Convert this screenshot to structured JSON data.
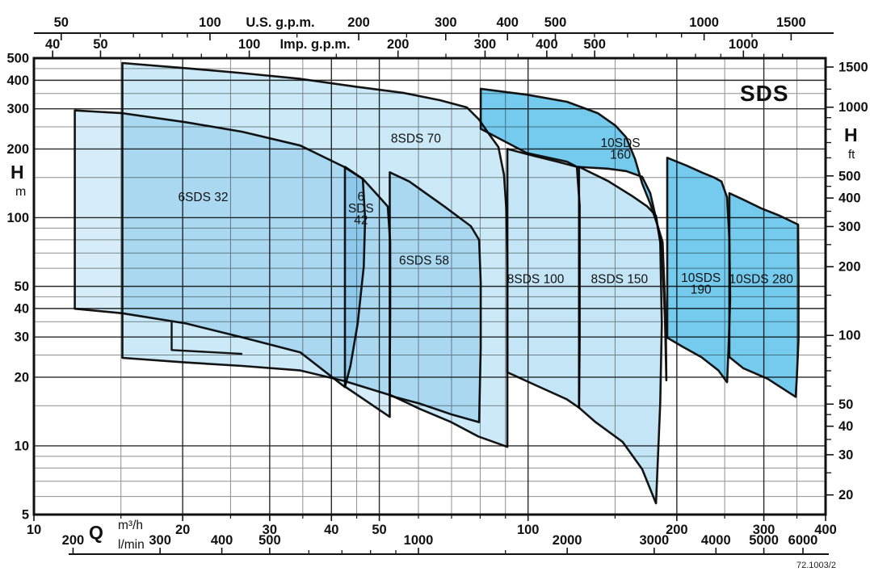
{
  "title": "SDS",
  "doc_code": "72.1003/2",
  "axis_labels": {
    "us": "U.S. g.p.m.",
    "imp": "Imp. g.p.m.",
    "head": "H",
    "head_unit_left": "m",
    "head_unit_right": "ft",
    "flow": "Q",
    "flow_unit_1": "m³/h",
    "flow_unit_2": "l/min"
  },
  "chart_data": {
    "type": "area",
    "description": "Pump operating-range envelopes, flow Q vs head H, log-log scales",
    "x_unit": "m3/h",
    "y_unit": "m",
    "xlim": [
      10,
      400
    ],
    "ylim": [
      5,
      500
    ],
    "log_log": true,
    "grid": {
      "x_major": [
        10,
        20,
        30,
        40,
        50,
        100,
        200,
        300,
        400
      ],
      "x_minor": [
        15,
        25,
        35,
        45,
        60,
        70,
        80,
        90,
        150,
        250,
        350
      ],
      "y_major": [
        5,
        10,
        20,
        30,
        40,
        50,
        100,
        200,
        300,
        400,
        500
      ],
      "y_minor": [
        6,
        7,
        8,
        9,
        15,
        25,
        35,
        45,
        60,
        70,
        80,
        90,
        150,
        250,
        350,
        450
      ]
    },
    "top_axis_us_gpm": {
      "major": [
        50,
        100,
        200,
        300,
        400,
        500,
        1000,
        1500
      ],
      "minor": [
        60,
        70,
        80,
        90,
        150,
        250,
        350,
        450,
        600,
        700,
        800,
        900,
        1250
      ]
    },
    "top_axis_imp_gpm": {
      "major": [
        40,
        50,
        100,
        200,
        300,
        400,
        500,
        1000
      ],
      "minor": [
        60,
        70,
        80,
        90,
        150,
        250,
        350,
        450,
        600,
        700,
        800,
        900,
        1100,
        1200
      ]
    },
    "right_axis_ft": {
      "major": [
        20,
        30,
        40,
        50,
        100,
        200,
        300,
        400,
        500,
        1000,
        1500
      ],
      "minor": [
        25,
        35,
        45,
        60,
        70,
        80,
        90,
        150,
        250,
        350,
        450,
        600,
        700,
        800,
        900,
        1200
      ]
    },
    "bottom_axis_lmin": {
      "major": [
        200,
        300,
        400,
        500,
        1000,
        2000,
        3000,
        4000,
        5000,
        6000
      ],
      "minor": [
        600,
        700,
        800,
        900,
        1500
      ]
    },
    "series": [
      {
        "name": "6SDS 32",
        "label_lines": [
          "6SDS 32"
        ],
        "label_pos": [
          22,
          123
        ],
        "color": "#d6edf9",
        "polygon": [
          [
            12.1,
            295
          ],
          [
            15.1,
            287
          ],
          [
            20.3,
            262
          ],
          [
            26.4,
            238
          ],
          [
            34.6,
            207
          ],
          [
            42.4,
            167
          ],
          [
            46.3,
            148
          ],
          [
            46.8,
            99
          ],
          [
            46.5,
            61
          ],
          [
            45.2,
            34.4
          ],
          [
            43.7,
            22.4
          ],
          [
            42.6,
            18.1
          ],
          [
            34.6,
            25.7
          ],
          [
            26.4,
            29.9
          ],
          [
            20.3,
            34.4
          ],
          [
            15.1,
            38.1
          ],
          [
            12.1,
            39.9
          ]
        ]
      },
      {
        "name": "6SDS 42",
        "label_lines": [
          "6",
          "SDS",
          "42"
        ],
        "label_pos": [
          45.9,
          110
        ],
        "color": "#d6edf9",
        "polygon": [
          [
            42.6,
            167
          ],
          [
            46.3,
            148
          ],
          [
            49.7,
            125
          ],
          [
            52.0,
            112
          ],
          [
            52.6,
            78
          ],
          [
            52.6,
            37.4
          ],
          [
            52.5,
            21
          ],
          [
            52.5,
            13.4
          ],
          [
            42.6,
            18.2
          ]
        ]
      },
      {
        "name": "6SDS 58",
        "label_lines": [
          "6SDS 58"
        ],
        "label_pos": [
          61.6,
          65
        ],
        "color": "#d6edf9",
        "polygon": [
          [
            52.5,
            158
          ],
          [
            57.5,
            144
          ],
          [
            67.7,
            112
          ],
          [
            76.6,
            91.8
          ],
          [
            79.6,
            79.9
          ],
          [
            80.2,
            51.9
          ],
          [
            80.2,
            27
          ],
          [
            79.6,
            12.7
          ],
          [
            70.2,
            13.7
          ],
          [
            60.5,
            15.3
          ],
          [
            52.5,
            16.6
          ]
        ]
      },
      {
        "name": "8SDS 70",
        "label_lines": [
          "8SDS 70"
        ],
        "label_pos": [
          59.3,
          222
        ],
        "color": "#cbe9f7",
        "polygon": [
          [
            15.1,
            476
          ],
          [
            20.3,
            452
          ],
          [
            26.4,
            430
          ],
          [
            34.6,
            406
          ],
          [
            44.8,
            375
          ],
          [
            56.1,
            352
          ],
          [
            66.4,
            327
          ],
          [
            75.2,
            304
          ],
          [
            79.6,
            269
          ],
          [
            83.2,
            234
          ],
          [
            87.1,
            204
          ],
          [
            89.4,
            154
          ],
          [
            90.4,
            108
          ],
          [
            90.8,
            61
          ],
          [
            90.8,
            29.1
          ],
          [
            90.8,
            9.9
          ],
          [
            79.3,
            11
          ],
          [
            69.9,
            12.7
          ],
          [
            60.5,
            14.5
          ],
          [
            53,
            16.6
          ],
          [
            42.6,
            19.2
          ],
          [
            34.6,
            21.4
          ],
          [
            26.4,
            22.4
          ],
          [
            20.3,
            23.2
          ],
          [
            15.1,
            24.3
          ]
        ]
      },
      {
        "name": "8SDS 100",
        "label_lines": [
          "8SDS 100"
        ],
        "label_pos": [
          103.6,
          53.8
        ],
        "color": "#c3e5f5",
        "polygon": [
          [
            90.8,
            200
          ],
          [
            102.4,
            187
          ],
          [
            114.6,
            176
          ],
          [
            125.5,
            167
          ],
          [
            127.2,
            113
          ],
          [
            127.2,
            61
          ],
          [
            127.2,
            29.1
          ],
          [
            126.8,
            14.7
          ],
          [
            119.8,
            16
          ],
          [
            105,
            18.2
          ],
          [
            90.8,
            21
          ]
        ]
      },
      {
        "name": "8SDS 150",
        "label_lines": [
          "8SDS 150"
        ],
        "label_pos": [
          153.1,
          53.8
        ],
        "color": "#c3e5f5",
        "polygon": [
          [
            126.8,
            167
          ],
          [
            145,
            145
          ],
          [
            161.9,
            125
          ],
          [
            174.3,
            112
          ],
          [
            181.5,
            102
          ],
          [
            185.1,
            78
          ],
          [
            186.5,
            34.4
          ],
          [
            185.1,
            15.3
          ],
          [
            181.5,
            5.6
          ],
          [
            170.2,
            7.9
          ],
          [
            155.4,
            10.4
          ],
          [
            137,
            12.7
          ],
          [
            126.8,
            14.7
          ]
        ]
      },
      {
        "name": "10SDS 160",
        "label_lines": [
          "10SDS",
          "160"
        ],
        "label_pos": [
          153.8,
          200
        ],
        "color": "#74cbee",
        "polygon": [
          [
            80.2,
            367
          ],
          [
            99.4,
            346
          ],
          [
            119.9,
            322
          ],
          [
            138.4,
            287
          ],
          [
            150.3,
            253
          ],
          [
            157.9,
            225
          ],
          [
            164.6,
            181
          ],
          [
            170.2,
            141
          ],
          [
            176.7,
            115
          ],
          [
            183,
            91.8
          ],
          [
            187.2,
            78
          ],
          [
            190,
            34.4
          ],
          [
            190.5,
            19.4
          ],
          [
            189.3,
            35.9
          ],
          [
            186.5,
            73
          ],
          [
            181.5,
            99.4
          ],
          [
            176.7,
            128
          ],
          [
            170.2,
            151
          ],
          [
            157.9,
            160
          ],
          [
            145,
            164
          ],
          [
            125.5,
            167
          ],
          [
            119.9,
            176
          ],
          [
            99.4,
            192
          ],
          [
            80.2,
            245
          ]
        ]
      },
      {
        "name": "10SDS 190",
        "label_lines": [
          "10SDS",
          "190"
        ],
        "label_pos": [
          223.8,
          51.3
        ],
        "color": "#74cbee",
        "polygon": [
          [
            191.3,
            183
          ],
          [
            209.4,
            169
          ],
          [
            225.8,
            157
          ],
          [
            237.9,
            150
          ],
          [
            246.2,
            144
          ],
          [
            252.7,
            123
          ],
          [
            255.5,
            81.1
          ],
          [
            256.4,
            44
          ],
          [
            254.5,
            26.8
          ],
          [
            252.8,
            19
          ],
          [
            242.8,
            21.4
          ],
          [
            224.1,
            24.5
          ],
          [
            205.5,
            27.2
          ],
          [
            191.3,
            29.8
          ]
        ]
      },
      {
        "name": "10SDS 280",
        "label_lines": [
          "10SDS 280"
        ],
        "label_pos": [
          296.2,
          53.8
        ],
        "color": "#74cbee",
        "polygon": [
          [
            255.5,
            128
          ],
          [
            272.5,
            120
          ],
          [
            296.1,
            110
          ],
          [
            322.9,
            102
          ],
          [
            352,
            93.3
          ],
          [
            352.6,
            56.1
          ],
          [
            352.6,
            29.1
          ],
          [
            350,
            20.2
          ],
          [
            348,
            16.4
          ],
          [
            305.2,
            19.7
          ],
          [
            272.5,
            21.9
          ],
          [
            255.5,
            24.5
          ]
        ]
      }
    ],
    "annotations": {
      "step_line": [
        [
          19.0,
          35.3
        ],
        [
          19.0,
          26.3
        ],
        [
          26.4,
          25.3
        ]
      ]
    }
  }
}
